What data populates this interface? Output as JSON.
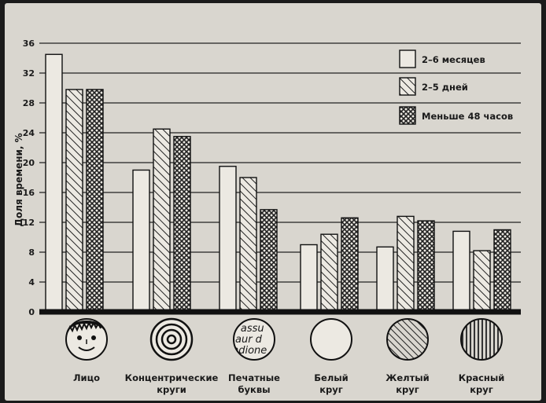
{
  "chart_data": {
    "type": "bar",
    "ylabel": "Доля времени, %",
    "xlabel": "",
    "title": "",
    "ylim": [
      0,
      36
    ],
    "yticks": [
      0,
      4,
      8,
      12,
      16,
      20,
      24,
      28,
      32,
      36
    ],
    "grid": true,
    "legend_position": "top-right",
    "categories": [
      {
        "line1": "Лицо",
        "line2": "",
        "icon": "face-icon"
      },
      {
        "line1": "Концентрические",
        "line2": "круги",
        "icon": "concentric-circles-icon"
      },
      {
        "line1": "Печатные",
        "line2": "буквы",
        "icon": "printed-letters-icon"
      },
      {
        "line1": "Белый",
        "line2": "круг",
        "icon": "white-circle-icon"
      },
      {
        "line1": "Желтый",
        "line2": "круг",
        "icon": "diagonal-striped-circle-icon"
      },
      {
        "line1": "Красный",
        "line2": "круг",
        "icon": "vertical-striped-circle-icon"
      }
    ],
    "series": [
      {
        "name": "2–6 месяцев",
        "pattern": "plain",
        "values": [
          34.5,
          19,
          19.5,
          9,
          8.7,
          10.8
        ]
      },
      {
        "name": "2–5 дней",
        "pattern": "diagonal",
        "values": [
          29.8,
          24.5,
          18,
          10.4,
          12.8,
          8.2
        ]
      },
      {
        "name": "Меньше 48 часов",
        "pattern": "crosshatch",
        "values": [
          29.8,
          23.5,
          13.7,
          12.6,
          12.2,
          11
        ]
      }
    ]
  }
}
